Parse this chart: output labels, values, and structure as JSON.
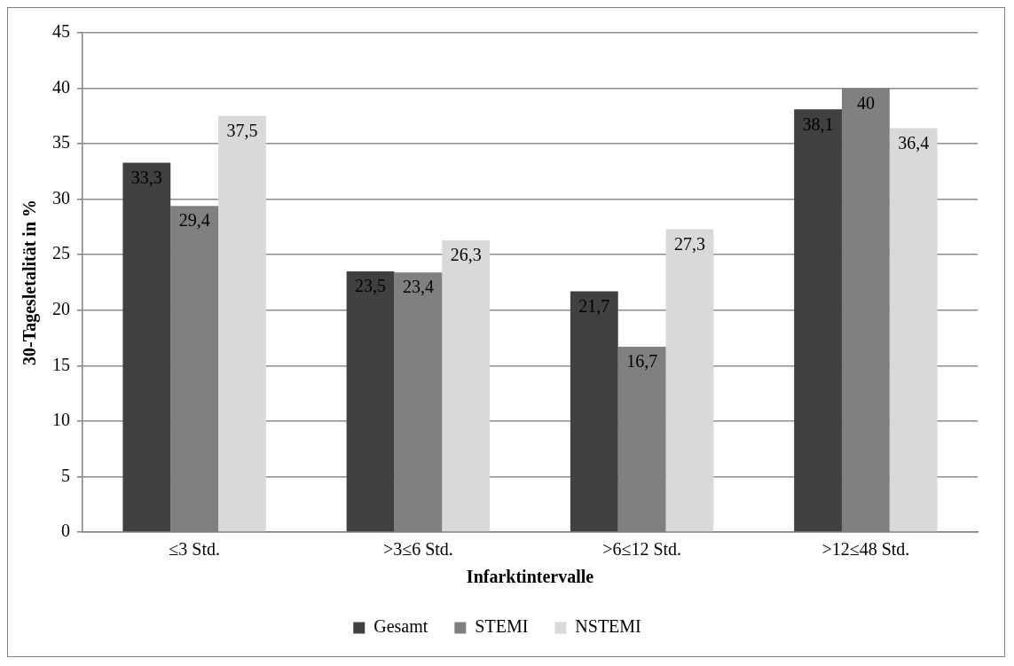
{
  "chart_data": {
    "type": "bar",
    "xlabel": "Infarktintervalle",
    "ylabel": "30-Tagesletalität in %",
    "categories": [
      "≤3 Std.",
      ">3≤6 Std.",
      ">6≤12 Std.",
      ">12≤48 Std."
    ],
    "series": [
      {
        "name": "Gesamt",
        "color": "#404040",
        "values": [
          33.3,
          23.5,
          21.7,
          38.1
        ],
        "value_labels": [
          "33,3",
          "23,5",
          "21,7",
          "38,1"
        ]
      },
      {
        "name": "STEMI",
        "color": "#808080",
        "values": [
          29.4,
          23.4,
          16.7,
          40
        ],
        "value_labels": [
          "29,4",
          "23,4",
          "16,7",
          "40"
        ]
      },
      {
        "name": "NSTEMI",
        "color": "#d9d9d9",
        "values": [
          37.5,
          26.3,
          27.3,
          36.4
        ],
        "value_labels": [
          "37,5",
          "26,3",
          "27,3",
          "36,4"
        ]
      }
    ],
    "ylim": [
      0,
      45
    ],
    "yticks": [
      0,
      5,
      10,
      15,
      20,
      25,
      30,
      35,
      40,
      45
    ],
    "grid": "y",
    "legend": "bottom"
  }
}
